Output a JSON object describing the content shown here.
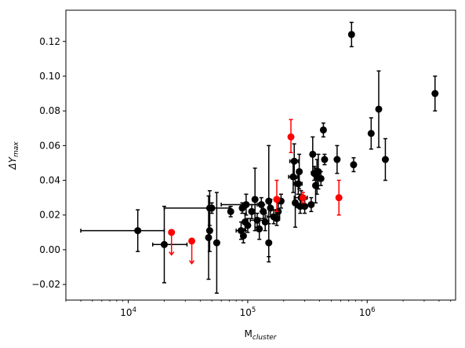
{
  "chart_data": {
    "type": "scatter",
    "title": "",
    "xlabel_main": "M",
    "xlabel_sub": "cluster",
    "ylabel_main": "ΔY",
    "ylabel_sub": "max",
    "x_scale": "log",
    "xlim": [
      3000,
      5500000
    ],
    "ylim": [
      -0.029,
      0.138
    ],
    "x_ticks": [
      {
        "value": 10000,
        "base": "10",
        "exp": "4"
      },
      {
        "value": 100000,
        "base": "10",
        "exp": "5"
      },
      {
        "value": 1000000,
        "base": "10",
        "exp": "6"
      }
    ],
    "y_ticks": [
      {
        "value": -0.02,
        "label": "−0.02"
      },
      {
        "value": 0.0,
        "label": "0.00"
      },
      {
        "value": 0.02,
        "label": "0.02"
      },
      {
        "value": 0.04,
        "label": "0.04"
      },
      {
        "value": 0.06,
        "label": "0.06"
      },
      {
        "value": 0.08,
        "label": "0.08"
      },
      {
        "value": 0.1,
        "label": "0.10"
      },
      {
        "value": 0.12,
        "label": "0.12"
      }
    ],
    "grid": false,
    "legend": "none",
    "colors": {
      "black_series": "#000000",
      "red_series": "#ff0000"
    },
    "series": [
      {
        "color": "black",
        "points": [
          {
            "x": 12000,
            "y": 0.011,
            "yerr": [
              0.012,
              0.012
            ],
            "xerr": [
              8000,
              8000
            ]
          },
          {
            "x": 20000,
            "y": 0.003,
            "yerr": [
              0.022,
              0.022
            ],
            "xerr": [
              4000,
              11000
            ]
          },
          {
            "x": 47000,
            "y": 0.007,
            "yerr": [
              0.024,
              0.024
            ]
          },
          {
            "x": 48000,
            "y": 0.024,
            "yerr": [
              0.01,
              0.01
            ],
            "xerr": [
              28000,
              22000
            ]
          },
          {
            "x": 48000,
            "y": 0.011,
            "yerr": [
              0.012,
              0.012
            ]
          },
          {
            "x": 50000,
            "y": 0.024,
            "yerr": [
              0.003,
              0.003
            ]
          },
          {
            "x": 55000,
            "y": 0.004,
            "yerr": [
              0.029,
              0.029
            ]
          },
          {
            "x": 72000,
            "y": 0.022,
            "yerr": [
              0.003,
              0.003
            ]
          },
          {
            "x": 88000,
            "y": 0.011,
            "yerr": [
              0.005,
              0.005
            ],
            "xerr": [
              8000,
              8000
            ]
          },
          {
            "x": 90000,
            "y": 0.024,
            "yerr": [
              0.003,
              0.003
            ]
          },
          {
            "x": 92000,
            "y": 0.008,
            "yerr": [
              0.004,
              0.004
            ]
          },
          {
            "x": 95000,
            "y": 0.016,
            "yerr": [
              0.005,
              0.005
            ]
          },
          {
            "x": 97000,
            "y": 0.026,
            "yerr": [
              0.006,
              0.006
            ],
            "xerr": [
              37000,
              23000
            ]
          },
          {
            "x": 100000,
            "y": 0.014,
            "yerr": [
              0.004,
              0.004
            ]
          },
          {
            "x": 108000,
            "y": 0.022,
            "yerr": [
              0.004,
              0.004
            ]
          },
          {
            "x": 115000,
            "y": 0.029,
            "yerr": [
              0.018,
              0.018
            ]
          },
          {
            "x": 120000,
            "y": 0.017,
            "yerr": [
              0.004,
              0.004
            ],
            "xerr": [
              15000,
              15000
            ]
          },
          {
            "x": 125000,
            "y": 0.012,
            "yerr": [
              0.006,
              0.006
            ]
          },
          {
            "x": 130000,
            "y": 0.026,
            "yerr": [
              0.004,
              0.004
            ]
          },
          {
            "x": 135000,
            "y": 0.022,
            "yerr": [
              0.004,
              0.004
            ]
          },
          {
            "x": 140000,
            "y": 0.016,
            "yerr": [
              0.005,
              0.005
            ]
          },
          {
            "x": 150000,
            "y": 0.004,
            "yerr": [
              0.011,
              0.011
            ]
          },
          {
            "x": 150000,
            "y": 0.028,
            "yerr": [
              0.032,
              0.032
            ]
          },
          {
            "x": 155000,
            "y": 0.024,
            "yerr": [
              0.005,
              0.005
            ]
          },
          {
            "x": 165000,
            "y": 0.019,
            "yerr": [
              0.004,
              0.004
            ],
            "xerr": [
              20000,
              20000
            ]
          },
          {
            "x": 175000,
            "y": 0.018,
            "yerr": [
              0.004,
              0.004
            ]
          },
          {
            "x": 180000,
            "y": 0.022,
            "yerr": [
              0.005,
              0.005
            ]
          },
          {
            "x": 190000,
            "y": 0.028,
            "yerr": [
              0.004,
              0.004
            ]
          },
          {
            "x": 240000,
            "y": 0.042,
            "yerr": [
              0.009,
              0.009
            ],
            "xerr": [
              20000,
              20000
            ]
          },
          {
            "x": 245000,
            "y": 0.051,
            "yerr": [
              0.01,
              0.01
            ],
            "xerr": [
              20000,
              20000
            ]
          },
          {
            "x": 250000,
            "y": 0.027,
            "yerr": [
              0.014,
              0.014
            ]
          },
          {
            "x": 265000,
            "y": 0.038,
            "yerr": [
              0.006,
              0.006
            ],
            "xerr": [
              20000,
              20000
            ]
          },
          {
            "x": 270000,
            "y": 0.045,
            "yerr": [
              0.01,
              0.01
            ]
          },
          {
            "x": 275000,
            "y": 0.025,
            "yerr": [
              0.004,
              0.004
            ],
            "xerr": [
              20000,
              20000
            ]
          },
          {
            "x": 280000,
            "y": 0.03,
            "yerr": [
              0.004,
              0.004
            ],
            "xerr": [
              35000,
              35000
            ]
          },
          {
            "x": 300000,
            "y": 0.025,
            "yerr": [
              0.004,
              0.004
            ]
          },
          {
            "x": 340000,
            "y": 0.026,
            "yerr": [
              0.004,
              0.004
            ]
          },
          {
            "x": 350000,
            "y": 0.055,
            "yerr": [
              0.01,
              0.01
            ]
          },
          {
            "x": 360000,
            "y": 0.044,
            "yerr": [
              0.004,
              0.004
            ]
          },
          {
            "x": 370000,
            "y": 0.037,
            "yerr": [
              0.01,
              0.01
            ]
          },
          {
            "x": 380000,
            "y": 0.042,
            "yerr": [
              0.01,
              0.01
            ]
          },
          {
            "x": 390000,
            "y": 0.045,
            "yerr": [
              0.01,
              0.01
            ]
          },
          {
            "x": 410000,
            "y": 0.041,
            "yerr": [
              0.004,
              0.004
            ]
          },
          {
            "x": 430000,
            "y": 0.069,
            "yerr": [
              0.004,
              0.004
            ]
          },
          {
            "x": 440000,
            "y": 0.052,
            "yerr": [
              0.003,
              0.003
            ],
            "xerr": [
              20000,
              20000
            ]
          },
          {
            "x": 560000,
            "y": 0.052,
            "yerr": [
              0.008,
              0.008
            ]
          },
          {
            "x": 740000,
            "y": 0.124,
            "yerr": [
              0.007,
              0.007
            ]
          },
          {
            "x": 770000,
            "y": 0.049,
            "yerr": [
              0.004,
              0.004
            ]
          },
          {
            "x": 1080000,
            "y": 0.067,
            "yerr": [
              0.009,
              0.009
            ]
          },
          {
            "x": 1250000,
            "y": 0.081,
            "yerr": [
              0.022,
              0.022
            ]
          },
          {
            "x": 1420000,
            "y": 0.052,
            "yerr": [
              0.012,
              0.012
            ]
          },
          {
            "x": 3700000,
            "y": 0.09,
            "yerr": [
              0.01,
              0.01
            ]
          }
        ]
      },
      {
        "color": "red",
        "points": [
          {
            "x": 23000,
            "y": 0.01,
            "upper_limit": true
          },
          {
            "x": 34000,
            "y": 0.005,
            "upper_limit": true
          },
          {
            "x": 230000,
            "y": 0.065,
            "yerr": [
              0.009,
              0.01
            ]
          },
          {
            "x": 175000,
            "y": 0.029,
            "yerr": [
              0.007,
              0.011
            ]
          },
          {
            "x": 290000,
            "y": 0.03,
            "yerr": [
              0.003,
              0.003
            ]
          },
          {
            "x": 580000,
            "y": 0.03,
            "yerr": [
              0.01,
              0.01
            ]
          }
        ]
      }
    ]
  }
}
